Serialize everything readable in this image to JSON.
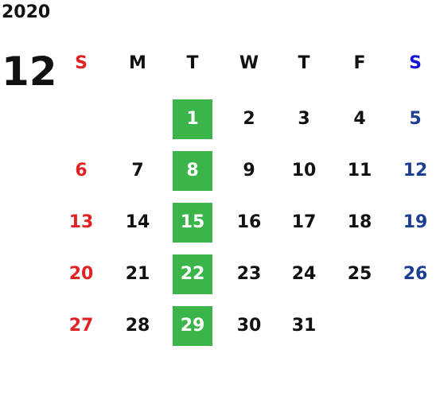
{
  "year": "2020",
  "month": "12",
  "weekdays": [
    "S",
    "M",
    "T",
    "W",
    "T",
    "F",
    "S"
  ],
  "weeks": [
    [
      null,
      null,
      "1",
      "2",
      "3",
      "4",
      "5"
    ],
    [
      "6",
      "7",
      "8",
      "9",
      "10",
      "11",
      "12"
    ],
    [
      "13",
      "14",
      "15",
      "16",
      "17",
      "18",
      "19"
    ],
    [
      "20",
      "21",
      "22",
      "23",
      "24",
      "25",
      "26"
    ],
    [
      "27",
      "28",
      "29",
      "30",
      "31",
      null,
      null
    ]
  ]
}
